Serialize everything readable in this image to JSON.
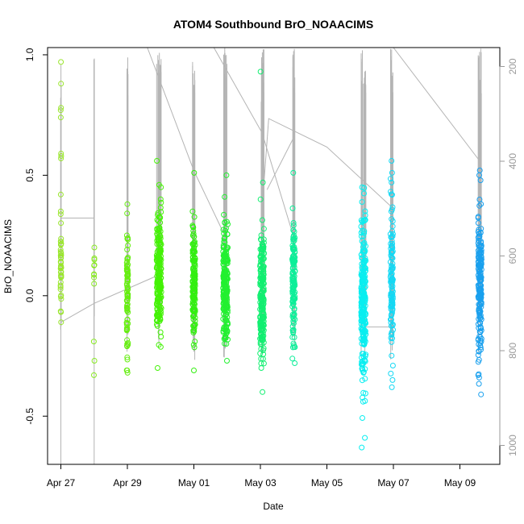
{
  "chart_data": {
    "type": "scatter",
    "title": "ATOM4 Southbound BrO_NOAACIMS",
    "xlabel": "Date",
    "ylabel": "BrO_NOAACIMS",
    "x_ticks": [
      "Apr 27",
      "Apr 29",
      "May 01",
      "May 03",
      "May 05",
      "May 07",
      "May 09"
    ],
    "x_tick_day_index": [
      0,
      2,
      4,
      6,
      8,
      10,
      12
    ],
    "xlim_day_index": [
      -0.4,
      13.2
    ],
    "y_ticks": [
      "-0.5",
      "0.0",
      "0.5",
      "1.0"
    ],
    "ylim": [
      -0.7,
      1.03
    ],
    "right_axis": {
      "ticks": [
        "200",
        "400",
        "600",
        "800",
        "1000"
      ],
      "values": [
        200,
        400,
        600,
        800,
        1000
      ],
      "lim": [
        1040,
        160
      ],
      "reversed": true,
      "color": "#9a9a9a",
      "description": "flight pressure/altitude track drawn in gray"
    },
    "grid": false,
    "legend": "none",
    "marker": "open-circle",
    "color_scale": "color varies along the flight path: yellow-green → green → cyan → blue",
    "flights": [
      {
        "day": 0.0,
        "color": "#99e62b",
        "spread": 0.01,
        "n": 40,
        "center": 0.12,
        "sd": 0.09,
        "extra": [
          0.97,
          0.88,
          0.78,
          0.77,
          0.74,
          0.59,
          0.58,
          0.57,
          0.42,
          0.35,
          -0.11
        ]
      },
      {
        "day": 1.0,
        "color": "#88ea22",
        "spread": 0.01,
        "n": 8,
        "center": 0.1,
        "sd": 0.05,
        "extra": [
          0.2,
          -0.19,
          -0.27,
          -0.33
        ]
      },
      {
        "day": 2.0,
        "color": "#66ee11",
        "spread": 0.02,
        "n": 90,
        "center": 0.02,
        "sd": 0.13,
        "extra": [
          0.38,
          -0.31
        ]
      },
      {
        "day": 2.95,
        "color": "#44f206",
        "spread": 0.07,
        "n": 200,
        "center": 0.09,
        "sd": 0.12,
        "extra": [
          0.56,
          0.46,
          0.45,
          -0.3
        ]
      },
      {
        "day": 4.0,
        "color": "#33ef10",
        "spread": 0.04,
        "n": 150,
        "center": 0.03,
        "sd": 0.12,
        "extra": [
          0.51,
          0.35,
          -0.31
        ]
      },
      {
        "day": 4.95,
        "color": "#22f030",
        "spread": 0.07,
        "n": 220,
        "center": 0.04,
        "sd": 0.12,
        "extra": [
          0.5,
          0.41,
          -0.27
        ]
      },
      {
        "day": 6.05,
        "color": "#11ef70",
        "spread": 0.06,
        "n": 200,
        "center": 0.0,
        "sd": 0.14,
        "extra": [
          0.93,
          0.47,
          0.4,
          -0.3,
          -0.4
        ]
      },
      {
        "day": 7.0,
        "color": "#0cef99",
        "spread": 0.04,
        "n": 130,
        "center": 0.06,
        "sd": 0.13,
        "extra": [
          0.51,
          -0.28
        ]
      },
      {
        "day": 9.1,
        "color": "#08eef0",
        "spread": 0.07,
        "n": 240,
        "center": -0.02,
        "sd": 0.16,
        "extra": [
          0.45,
          0.31,
          -0.44,
          -0.59,
          -0.63
        ]
      },
      {
        "day": 9.95,
        "color": "#14d8f4",
        "spread": 0.04,
        "n": 110,
        "center": 0.08,
        "sd": 0.17,
        "extra": [
          0.56,
          0.51,
          0.47,
          -0.35,
          -0.38
        ]
      },
      {
        "day": 12.6,
        "color": "#1aa0ee",
        "spread": 0.05,
        "n": 190,
        "center": 0.03,
        "sd": 0.15,
        "extra": [
          0.52,
          0.5,
          0.38,
          -0.34,
          -0.41
        ]
      }
    ],
    "track_segments": [
      [
        [
          0.0,
          1040
        ],
        [
          1.0,
          1040
        ],
        [
          1.0,
          520
        ],
        [
          0.0,
          520
        ],
        [
          0.0,
          1040
        ]
      ],
      [
        [
          0.0,
          740
        ],
        [
          1.0,
          700
        ],
        [
          2.95,
          640
        ]
      ],
      [
        [
          2.6,
          160
        ],
        [
          4.0,
          420
        ],
        [
          4.95,
          560
        ]
      ],
      [
        [
          4.6,
          160
        ],
        [
          6.05,
          340
        ],
        [
          7.0,
          560
        ]
      ],
      [
        [
          6.2,
          460
        ],
        [
          7.0,
          350
        ]
      ],
      [
        [
          6.05,
          500
        ],
        [
          6.25,
          310
        ],
        [
          8.0,
          370
        ],
        [
          10.0,
          500
        ]
      ],
      [
        [
          10.0,
          160
        ],
        [
          12.6,
          400
        ]
      ],
      [
        [
          9.1,
          750
        ],
        [
          10.0,
          750
        ]
      ]
    ]
  }
}
